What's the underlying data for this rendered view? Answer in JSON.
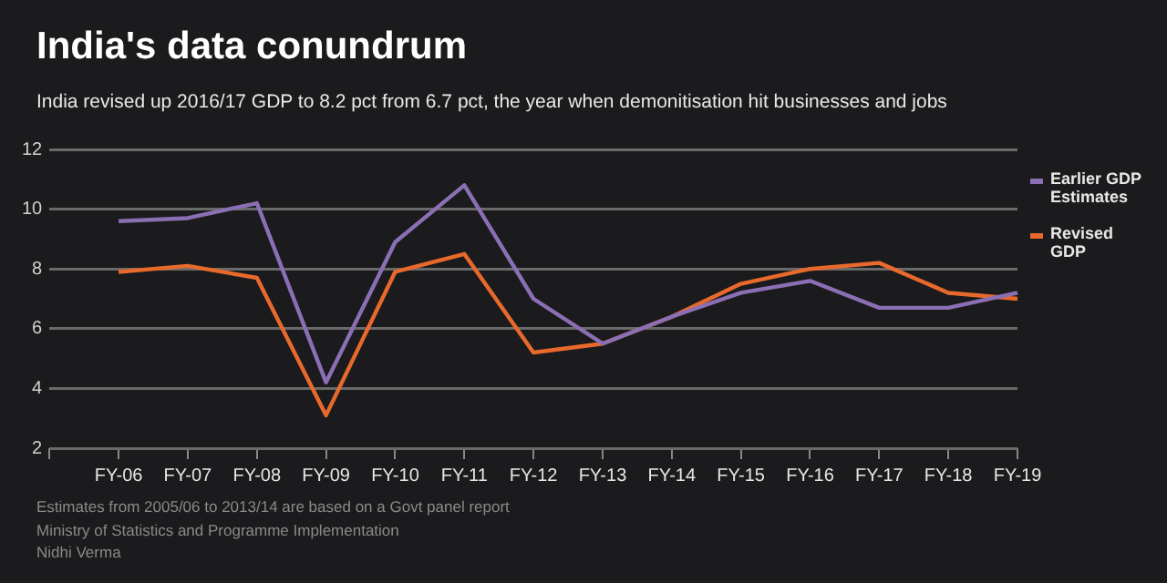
{
  "chart_data": {
    "type": "line",
    "title": "India's data conundrum",
    "subtitle": "India revised up 2016/17 GDP to 8.2 pct from 6.7 pct, the year when demonitisation hit businesses and jobs",
    "categories": [
      null,
      "FY-06",
      "FY-07",
      "FY-08",
      "FY-09",
      "FY-10",
      "FY-11",
      "FY-12",
      "FY-13",
      "FY-14",
      "FY-15",
      "FY-16",
      "FY-17",
      "FY-18",
      "FY-19"
    ],
    "series": [
      {
        "name": "Earlier GDP Estimates",
        "color": "#8b6fb5",
        "values": [
          null,
          9.6,
          9.7,
          10.2,
          4.2,
          8.9,
          10.8,
          7.0,
          5.5,
          6.4,
          7.2,
          7.6,
          6.7,
          6.7,
          7.2
        ]
      },
      {
        "name": "Revised GDP",
        "color": "#e8692c",
        "values": [
          null,
          7.9,
          8.1,
          7.7,
          3.1,
          7.9,
          8.5,
          5.2,
          5.5,
          6.4,
          7.5,
          8.0,
          8.2,
          7.2,
          7.0
        ]
      }
    ],
    "ylim": [
      2,
      12
    ],
    "yticks": [
      2,
      4,
      6,
      8,
      10,
      12
    ],
    "grid": "y",
    "legend": "right",
    "annotations": [
      "Estimates from 2005/06 to 2013/14 are based on a Govt panel report",
      "Ministry of Statistics and Programme Implementation",
      "Nidhi Verma"
    ]
  }
}
